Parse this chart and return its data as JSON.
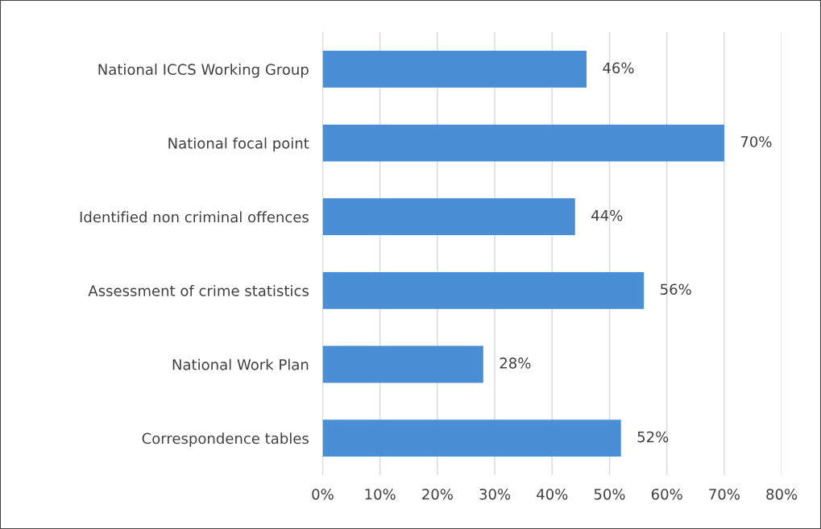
{
  "chart_data": {
    "type": "bar",
    "orientation": "horizontal",
    "categories": [
      "National ICCS Working Group",
      "National focal point",
      "Identified non criminal offences",
      "Assessment of crime statistics",
      "National Work Plan",
      "Correspondence tables"
    ],
    "values": [
      46,
      70,
      44,
      56,
      28,
      52
    ],
    "value_labels": [
      "46%",
      "70%",
      "44%",
      "56%",
      "28%",
      "52%"
    ],
    "color": "#4a8fd6",
    "xlim": [
      0,
      80
    ],
    "xticks": [
      {
        "value": 0,
        "label": "0%"
      },
      {
        "value": 10,
        "label": "10%"
      },
      {
        "value": 20,
        "label": "20%"
      },
      {
        "value": 30,
        "label": "30%"
      },
      {
        "value": 40,
        "label": "40%"
      },
      {
        "value": 50,
        "label": "50%"
      },
      {
        "value": 60,
        "label": "60%"
      },
      {
        "value": 70,
        "label": "70%"
      },
      {
        "value": 80,
        "label": "80%"
      }
    ],
    "grid": "x",
    "legend": false
  }
}
